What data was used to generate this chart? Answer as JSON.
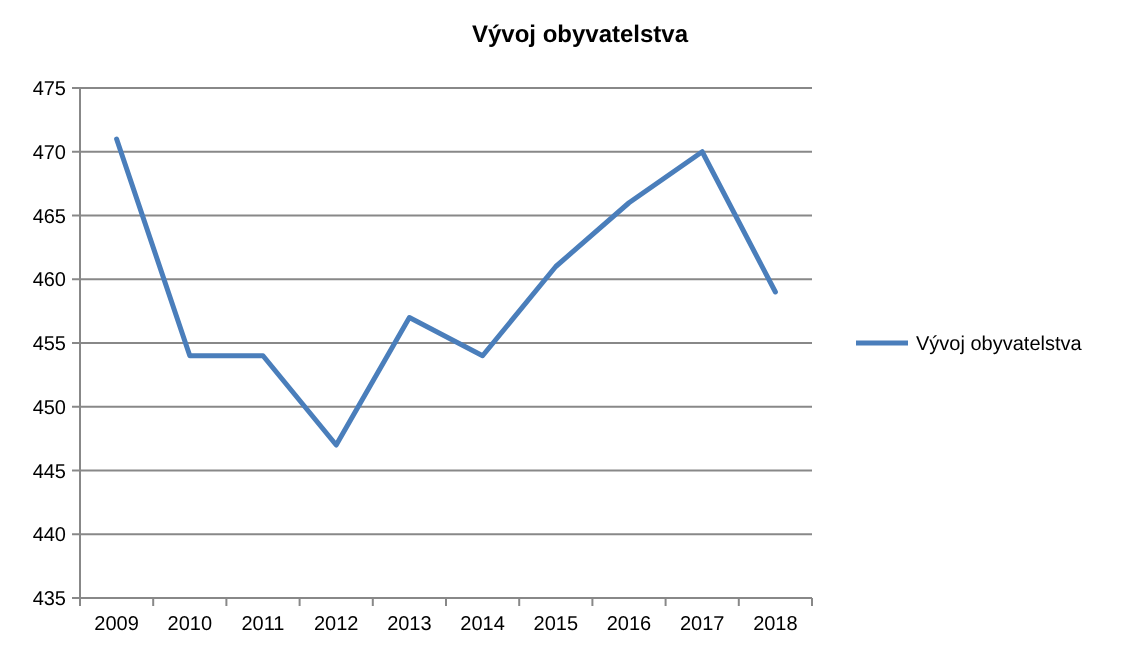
{
  "chart_data": {
    "type": "line",
    "title": "Vývoj obyvatelstva",
    "categories": [
      "2009",
      "2010",
      "2011",
      "2012",
      "2013",
      "2014",
      "2015",
      "2016",
      "2017",
      "2018"
    ],
    "series": [
      {
        "name": "Vývoj obyvatelstva",
        "color": "#4a7ebb",
        "values": [
          471,
          454,
          454,
          447,
          457,
          454,
          461,
          466,
          470,
          459
        ]
      }
    ],
    "ylim": [
      435,
      475
    ],
    "yticks": [
      435,
      440,
      445,
      450,
      455,
      460,
      465,
      470,
      475
    ],
    "grid": "y",
    "legend": "right"
  }
}
